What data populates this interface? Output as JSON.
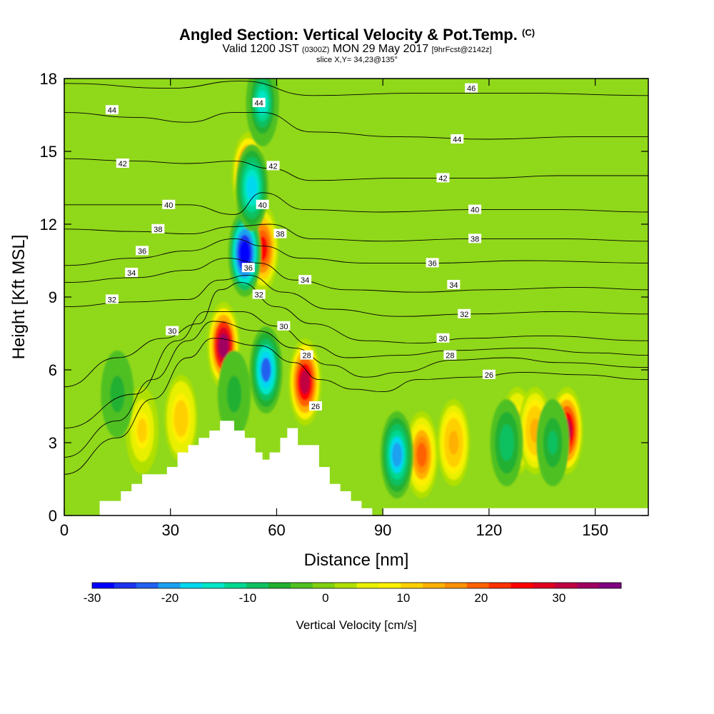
{
  "chart_data": {
    "type": "heatmap",
    "title": "Angled Section: Vertical Velocity & Pot.Temp.",
    "title_units": "(C)",
    "subtitle_prefix": "Valid 1200 JST",
    "subtitle_utc": "(0300Z)",
    "subtitle_date": "MON 29 May 2017",
    "subtitle_fcst": "[9hrFcst@2142z]",
    "slice_label": "slice X,Y= 34,23@135°",
    "xlabel": "Distance [nm]",
    "ylabel": "Height [Kft MSL]",
    "xlim": [
      0,
      165
    ],
    "ylim": [
      0,
      18
    ],
    "x_ticks": [
      "0",
      "30",
      "60",
      "90",
      "120",
      "150"
    ],
    "y_ticks": [
      "0",
      "3",
      "6",
      "9",
      "12",
      "15",
      "18"
    ],
    "colorbar": {
      "label": "Vertical Velocity [cm/s]",
      "ticks": [
        "-30",
        "-20",
        "-10",
        "0",
        "10",
        "20",
        "30"
      ],
      "range": [
        -30,
        38
      ],
      "colors": [
        "#0000ff",
        "#1a33f0",
        "#2060f0",
        "#1aa0f0",
        "#00d8f0",
        "#00e6c8",
        "#00d890",
        "#10c060",
        "#20b030",
        "#50c020",
        "#80d010",
        "#b0e000",
        "#e8f000",
        "#fff000",
        "#ffd000",
        "#ffb000",
        "#ff9000",
        "#ff6000",
        "#ff3000",
        "#ff0000",
        "#e00020",
        "#c00040",
        "#a00060",
        "#800080"
      ]
    },
    "wind_features": [
      {
        "type": "updraft",
        "x": 45,
        "y": 7.0,
        "value": 35
      },
      {
        "type": "updraft",
        "x": 52,
        "y": 14.0,
        "value": 30
      },
      {
        "type": "updraft",
        "x": 56,
        "y": 11.0,
        "value": 25
      },
      {
        "type": "updraft",
        "x": 68,
        "y": 5.5,
        "value": 30
      },
      {
        "type": "updraft",
        "x": 101,
        "y": 2.5,
        "value": 20
      },
      {
        "type": "updraft",
        "x": 110,
        "y": 3.0,
        "value": 15
      },
      {
        "type": "updraft",
        "x": 128,
        "y": 3.5,
        "value": 12
      },
      {
        "type": "updraft",
        "x": 133,
        "y": 3.5,
        "value": 15
      },
      {
        "type": "updraft",
        "x": 142,
        "y": 3.5,
        "value": 30
      },
      {
        "type": "updraft",
        "x": 22,
        "y": 3.5,
        "value": 10
      },
      {
        "type": "updraft",
        "x": 33,
        "y": 4.0,
        "value": 12
      },
      {
        "type": "downdraft",
        "x": 51,
        "y": 10.8,
        "value": -30
      },
      {
        "type": "downdraft",
        "x": 53,
        "y": 13.5,
        "value": -18
      },
      {
        "type": "downdraft",
        "x": 56,
        "y": 17.0,
        "value": -14
      },
      {
        "type": "downdraft",
        "x": 57,
        "y": 6.0,
        "value": -22
      },
      {
        "type": "downdraft",
        "x": 94,
        "y": 2.5,
        "value": -20
      },
      {
        "type": "downdraft",
        "x": 125,
        "y": 3.0,
        "value": -10
      },
      {
        "type": "downdraft",
        "x": 138,
        "y": 3.0,
        "value": -8
      },
      {
        "type": "downdraft",
        "x": 48,
        "y": 5.0,
        "value": -6
      },
      {
        "type": "downdraft",
        "x": 15,
        "y": 5.0,
        "value": -6
      }
    ],
    "terrain": {
      "x": [
        0,
        10,
        10,
        16,
        16,
        19,
        19,
        22,
        22,
        29,
        29,
        32,
        32,
        35,
        35,
        38,
        38,
        41,
        41,
        44,
        44,
        48,
        48,
        51,
        51,
        54,
        54,
        56,
        56,
        58,
        58,
        61,
        61,
        63,
        63,
        66,
        66,
        72,
        72,
        75,
        75,
        78,
        78,
        81,
        81,
        84,
        84,
        87,
        87,
        90,
        90,
        165
      ],
      "y": [
        0,
        0,
        0.6,
        0.6,
        1.0,
        1.0,
        1.3,
        1.3,
        1.7,
        1.7,
        2.0,
        2.0,
        2.6,
        2.6,
        2.9,
        2.9,
        3.2,
        3.2,
        3.5,
        3.5,
        3.9,
        3.9,
        3.5,
        3.5,
        3.2,
        3.2,
        2.6,
        2.6,
        2.3,
        2.3,
        2.6,
        2.6,
        3.2,
        3.2,
        3.6,
        3.6,
        2.9,
        2.9,
        2.0,
        2.0,
        1.3,
        1.3,
        1.0,
        1.0,
        0.6,
        0.6,
        0.3,
        0.3,
        0,
        0,
        0.3,
        0.3
      ]
    },
    "isentropes": [
      {
        "label": "26",
        "points": [
          [
            0,
            1.7
          ],
          [
            15,
            3.2
          ],
          [
            25,
            4.8
          ],
          [
            35,
            6.5
          ],
          [
            42,
            7.3
          ],
          [
            55,
            7.0
          ],
          [
            65,
            6.3
          ],
          [
            72,
            5.6
          ],
          [
            82,
            5.2
          ],
          [
            90,
            5.1
          ],
          [
            100,
            5.6
          ],
          [
            115,
            5.7
          ],
          [
            130,
            5.9
          ],
          [
            145,
            5.8
          ],
          [
            165,
            5.6
          ]
        ]
      },
      {
        "label": "28",
        "points": [
          [
            0,
            2.4
          ],
          [
            15,
            3.9
          ],
          [
            25,
            5.6
          ],
          [
            35,
            7.2
          ],
          [
            42,
            8.0
          ],
          [
            55,
            7.6
          ],
          [
            65,
            6.9
          ],
          [
            75,
            6.2
          ],
          [
            85,
            5.7
          ],
          [
            95,
            5.9
          ],
          [
            110,
            6.4
          ],
          [
            125,
            6.5
          ],
          [
            140,
            6.3
          ],
          [
            165,
            6.1
          ]
        ]
      },
      {
        "label": "28b",
        "points": [
          [
            0,
            3.6
          ],
          [
            20,
            5.0
          ],
          [
            32,
            7.2
          ],
          [
            40,
            8.4
          ],
          [
            50,
            8.4
          ],
          [
            60,
            7.8
          ],
          [
            70,
            7.0
          ],
          [
            80,
            6.5
          ],
          [
            95,
            6.6
          ],
          [
            110,
            6.8
          ],
          [
            130,
            6.9
          ],
          [
            150,
            6.7
          ],
          [
            165,
            6.6
          ]
        ]
      },
      {
        "label": "30",
        "points": [
          [
            0,
            5.3
          ],
          [
            15,
            6.5
          ],
          [
            28,
            7.3
          ],
          [
            38,
            7.9
          ],
          [
            44,
            9.3
          ],
          [
            50,
            9.6
          ],
          [
            60,
            8.6
          ],
          [
            70,
            7.9
          ],
          [
            85,
            7.2
          ],
          [
            100,
            7.1
          ],
          [
            115,
            7.3
          ],
          [
            135,
            7.4
          ],
          [
            165,
            7.2
          ]
        ]
      },
      {
        "label": "32",
        "points": [
          [
            0,
            8.6
          ],
          [
            20,
            8.8
          ],
          [
            35,
            8.9
          ],
          [
            44,
            9.7
          ],
          [
            52,
            9.9
          ],
          [
            62,
            9.2
          ],
          [
            75,
            8.5
          ],
          [
            95,
            8.2
          ],
          [
            115,
            8.3
          ],
          [
            140,
            8.4
          ],
          [
            165,
            8.3
          ]
        ]
      },
      {
        "label": "34",
        "points": [
          [
            0,
            9.6
          ],
          [
            20,
            9.8
          ],
          [
            35,
            10.1
          ],
          [
            46,
            10.6
          ],
          [
            55,
            10.4
          ],
          [
            65,
            9.7
          ],
          [
            80,
            9.3
          ],
          [
            100,
            9.2
          ],
          [
            120,
            9.3
          ],
          [
            145,
            9.4
          ],
          [
            165,
            9.3
          ]
        ]
      },
      {
        "label": "36",
        "points": [
          [
            0,
            10.3
          ],
          [
            20,
            10.6
          ],
          [
            35,
            10.9
          ],
          [
            48,
            11.4
          ],
          [
            56,
            11.1
          ],
          [
            67,
            10.6
          ],
          [
            85,
            10.4
          ],
          [
            105,
            10.4
          ],
          [
            130,
            10.5
          ],
          [
            165,
            10.4
          ]
        ]
      },
      {
        "label": "38",
        "points": [
          [
            0,
            11.8
          ],
          [
            20,
            11.7
          ],
          [
            35,
            11.6
          ],
          [
            48,
            11.9
          ],
          [
            58,
            12.0
          ],
          [
            70,
            11.4
          ],
          [
            90,
            11.3
          ],
          [
            115,
            11.4
          ],
          [
            140,
            11.4
          ],
          [
            165,
            11.3
          ]
        ]
      },
      {
        "label": "40",
        "points": [
          [
            0,
            12.8
          ],
          [
            20,
            12.8
          ],
          [
            35,
            12.8
          ],
          [
            48,
            12.4
          ],
          [
            56,
            13.3
          ],
          [
            68,
            12.6
          ],
          [
            90,
            12.5
          ],
          [
            115,
            12.6
          ],
          [
            140,
            12.6
          ],
          [
            165,
            12.5
          ]
        ]
      },
      {
        "label": "42",
        "points": [
          [
            0,
            14.7
          ],
          [
            20,
            14.6
          ],
          [
            35,
            14.5
          ],
          [
            48,
            14.6
          ],
          [
            58,
            14.3
          ],
          [
            70,
            13.8
          ],
          [
            95,
            13.9
          ],
          [
            120,
            13.9
          ],
          [
            140,
            14.0
          ],
          [
            165,
            14.0
          ]
        ]
      },
      {
        "label": "44",
        "points": [
          [
            0,
            16.6
          ],
          [
            20,
            16.4
          ],
          [
            35,
            16.2
          ],
          [
            48,
            16.6
          ],
          [
            56,
            16.6
          ],
          [
            70,
            15.8
          ],
          [
            95,
            15.6
          ],
          [
            120,
            15.5
          ],
          [
            145,
            15.6
          ],
          [
            165,
            15.6
          ]
        ]
      },
      {
        "label": "46",
        "points": [
          [
            0,
            17.8
          ],
          [
            30,
            17.6
          ],
          [
            50,
            17.9
          ],
          [
            70,
            17.3
          ],
          [
            100,
            17.4
          ],
          [
            130,
            17.4
          ],
          [
            165,
            17.3
          ]
        ]
      }
    ],
    "contour_labels": [
      {
        "text": "44",
        "x": 13.5,
        "y": 16.7
      },
      {
        "text": "42",
        "x": 16.5,
        "y": 14.5
      },
      {
        "text": "40",
        "x": 29.5,
        "y": 12.8
      },
      {
        "text": "38",
        "x": 26.5,
        "y": 11.8
      },
      {
        "text": "36",
        "x": 22.0,
        "y": 10.9
      },
      {
        "text": "34",
        "x": 19.0,
        "y": 10.0
      },
      {
        "text": "32",
        "x": 13.5,
        "y": 8.9
      },
      {
        "text": "30",
        "x": 30.5,
        "y": 7.6
      },
      {
        "text": "44",
        "x": 55.0,
        "y": 17.0
      },
      {
        "text": "42",
        "x": 59.0,
        "y": 14.4
      },
      {
        "text": "40",
        "x": 56.0,
        "y": 12.8
      },
      {
        "text": "38",
        "x": 61.0,
        "y": 11.6
      },
      {
        "text": "36",
        "x": 52.0,
        "y": 10.2
      },
      {
        "text": "34",
        "x": 68.0,
        "y": 9.7
      },
      {
        "text": "32",
        "x": 55.0,
        "y": 9.1
      },
      {
        "text": "30",
        "x": 62.0,
        "y": 7.8
      },
      {
        "text": "28",
        "x": 68.5,
        "y": 6.6
      },
      {
        "text": "26",
        "x": 71.0,
        "y": 4.5
      },
      {
        "text": "46",
        "x": 115.0,
        "y": 17.6
      },
      {
        "text": "44",
        "x": 111.0,
        "y": 15.5
      },
      {
        "text": "42",
        "x": 107.0,
        "y": 13.9
      },
      {
        "text": "40",
        "x": 116.0,
        "y": 12.6
      },
      {
        "text": "38",
        "x": 116.0,
        "y": 11.4
      },
      {
        "text": "36",
        "x": 104.0,
        "y": 10.4
      },
      {
        "text": "34",
        "x": 110.0,
        "y": 9.5
      },
      {
        "text": "32",
        "x": 113.0,
        "y": 8.3
      },
      {
        "text": "30",
        "x": 107.0,
        "y": 7.3
      },
      {
        "text": "28",
        "x": 109.0,
        "y": 6.6
      },
      {
        "text": "26",
        "x": 120.0,
        "y": 5.8
      }
    ]
  }
}
